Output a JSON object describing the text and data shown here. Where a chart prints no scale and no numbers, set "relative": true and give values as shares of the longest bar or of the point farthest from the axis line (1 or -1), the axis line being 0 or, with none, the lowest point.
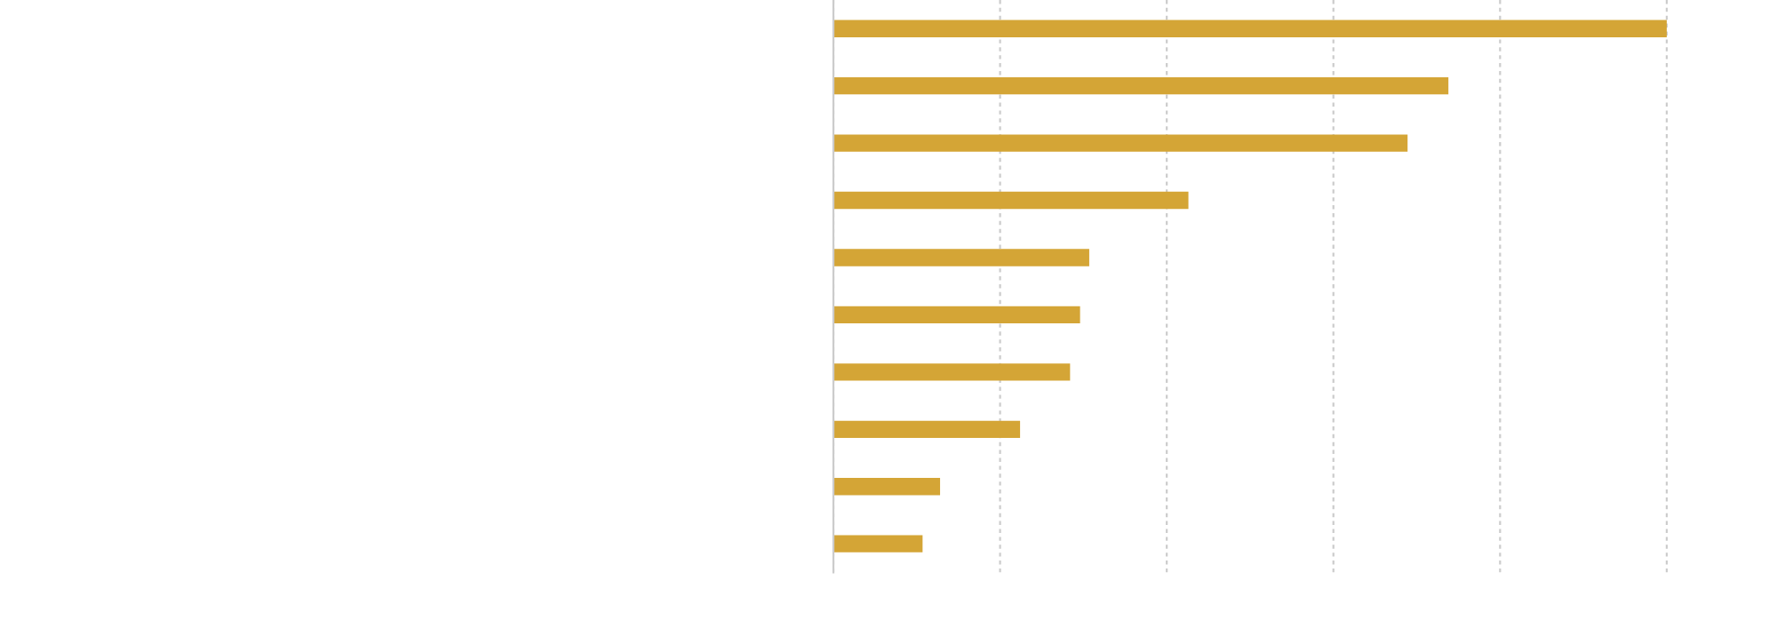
{
  "chart_data": {
    "type": "bar",
    "orientation": "horizontal",
    "relative": true,
    "categories": [
      null,
      null,
      null,
      null,
      null,
      null,
      null,
      null,
      null,
      null
    ],
    "values": [
      1,
      0.738,
      0.689,
      0.426,
      0.307,
      0.296,
      0.284,
      0.224,
      0.128,
      0.107
    ],
    "color": "#d4a536",
    "grid": "x",
    "legend": false
  }
}
